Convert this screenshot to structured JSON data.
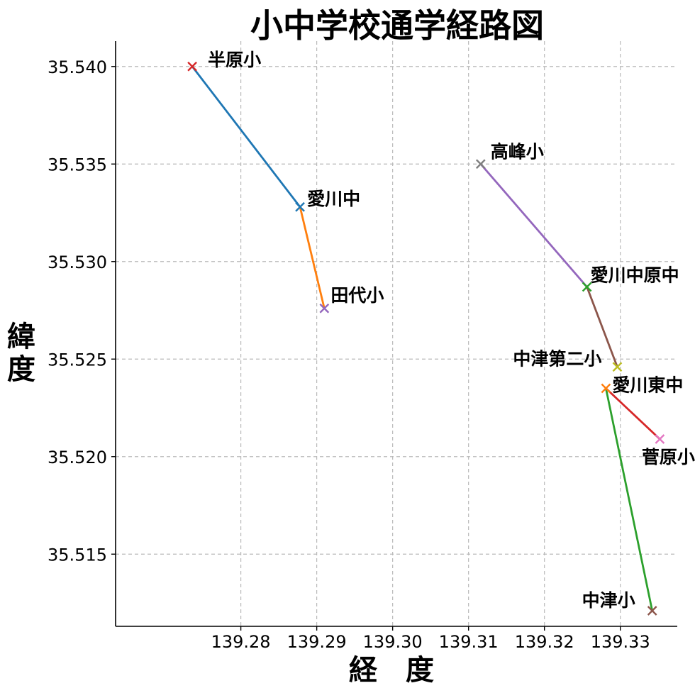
{
  "chart_data": {
    "type": "line",
    "title": "小中学校通学経路図",
    "xlabel": "経　度",
    "ylabel": "緯度",
    "xlim": [
      139.2635,
      139.3375
    ],
    "ylim": [
      35.5113,
      35.5413
    ],
    "x_ticks": [
      139.28,
      139.29,
      139.3,
      139.31,
      139.32,
      139.33
    ],
    "x_tick_labels": [
      "139.28",
      "139.29",
      "139.30",
      "139.31",
      "139.32",
      "139.33"
    ],
    "y_ticks": [
      35.515,
      35.52,
      35.525,
      35.53,
      35.535,
      35.54
    ],
    "y_tick_labels": [
      "35.515",
      "35.520",
      "35.525",
      "35.530",
      "35.535",
      "35.540"
    ],
    "grid": true,
    "points": [
      {
        "name": "半原小",
        "x": 139.2736,
        "y": 35.54,
        "color": "#d62728"
      },
      {
        "name": "愛川中",
        "x": 139.2878,
        "y": 35.5328,
        "color": "#1f77b4"
      },
      {
        "name": "田代小",
        "x": 139.291,
        "y": 35.5276,
        "color": "#9467bd"
      },
      {
        "name": "高峰小",
        "x": 139.3116,
        "y": 35.535,
        "color": "#7f7f7f"
      },
      {
        "name": "愛川中原中",
        "x": 139.3256,
        "y": 35.5287,
        "color": "#2ca02c"
      },
      {
        "name": "中津第二小",
        "x": 139.3296,
        "y": 35.5246,
        "color": "#bcbd22"
      },
      {
        "name": "愛川東中",
        "x": 139.3281,
        "y": 35.5235,
        "color": "#ff7f0e"
      },
      {
        "name": "菅原小",
        "x": 139.3352,
        "y": 35.5209,
        "color": "#e377c2"
      },
      {
        "name": "中津小",
        "x": 139.3342,
        "y": 35.5121,
        "color": "#8c564b"
      }
    ],
    "series": [
      {
        "from": "半原小",
        "to": "愛川中",
        "x": [
          139.2736,
          139.2878
        ],
        "y": [
          35.54,
          35.5328
        ],
        "color": "#1f77b4"
      },
      {
        "from": "愛川中",
        "to": "田代小",
        "x": [
          139.2878,
          139.291
        ],
        "y": [
          35.5328,
          35.5276
        ],
        "color": "#ff7f0e"
      },
      {
        "from": "高峰小",
        "to": "愛川中原中",
        "x": [
          139.3116,
          139.3256
        ],
        "y": [
          35.535,
          35.5287
        ],
        "color": "#9467bd"
      },
      {
        "from": "愛川中原中",
        "to": "中津第二小",
        "x": [
          139.3256,
          139.3296
        ],
        "y": [
          35.5287,
          35.5246
        ],
        "color": "#8c564b"
      },
      {
        "from": "愛川東中",
        "to": "菅原小",
        "x": [
          139.3281,
          139.3352
        ],
        "y": [
          35.5235,
          35.5209
        ],
        "color": "#d62728"
      },
      {
        "from": "愛川東中",
        "to": "中津小",
        "x": [
          139.3281,
          139.3342
        ],
        "y": [
          35.5235,
          35.5121
        ],
        "color": "#2ca02c"
      }
    ]
  }
}
